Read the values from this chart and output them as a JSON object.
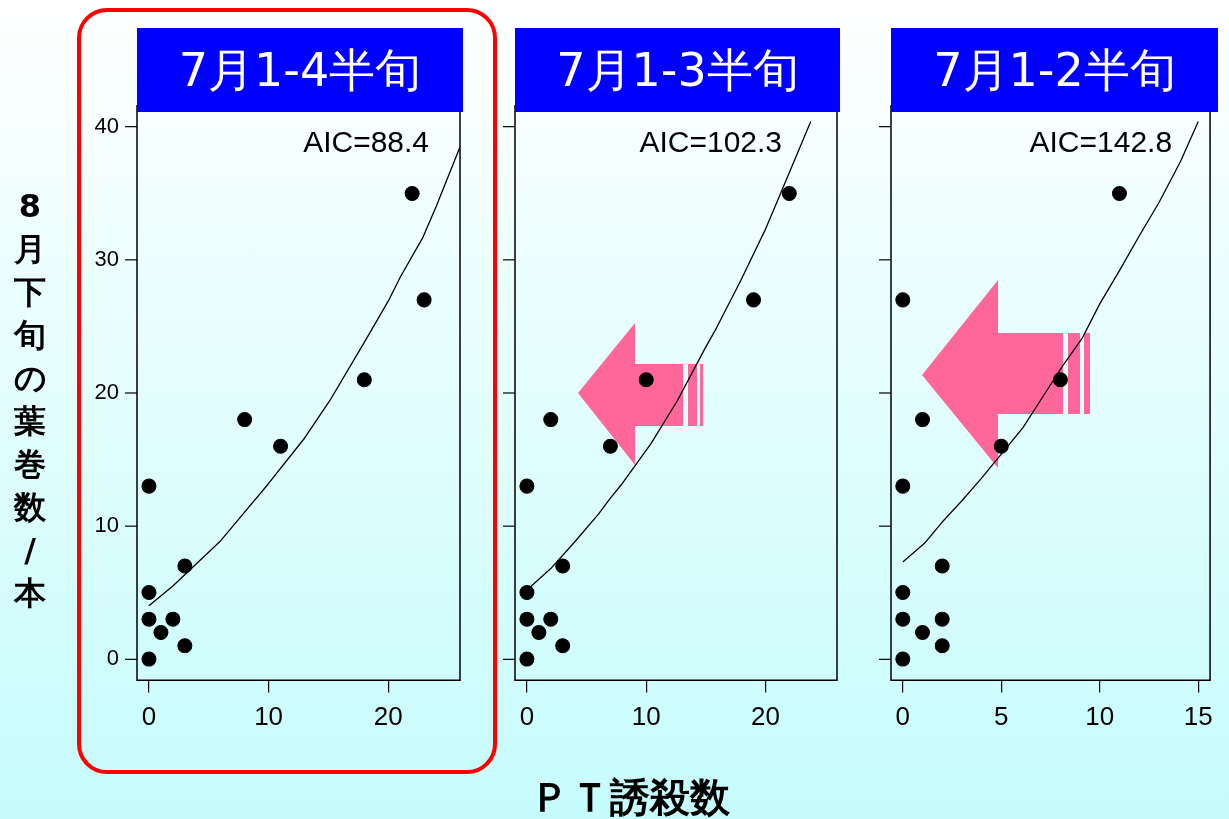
{
  "chart_data": [
    {
      "type": "scatter",
      "title": "7月1-4半旬",
      "ylabel": "8月下旬の葉巻数/本",
      "annotations": [
        "AIC=88.4"
      ],
      "marker": "circle",
      "grid": false,
      "xlim": [
        -1,
        26
      ],
      "xticks": [
        0,
        10,
        20
      ],
      "ylim": [
        -1.6,
        41.6
      ],
      "yticks": [
        0,
        10,
        20,
        30,
        40
      ],
      "series": [
        {
          "color": "#000000",
          "x": [
            0,
            0,
            1,
            2,
            3,
            0,
            3,
            0,
            8,
            11,
            18,
            22,
            23
          ],
          "values": [
            0,
            3,
            2,
            3,
            1,
            5,
            7,
            13,
            18,
            16,
            21,
            35,
            27
          ]
        },
        {
          "type": "line",
          "marker": "none",
          "color": "#000000",
          "x": [
            0,
            2,
            6,
            10,
            13,
            15.1,
            18,
            20,
            21,
            22.9,
            24,
            26
          ],
          "values": [
            4.0,
            5.5,
            8.9,
            13.2,
            16.6,
            19.4,
            23.8,
            26.9,
            28.7,
            31.7,
            34,
            38.5
          ]
        }
      ]
    },
    {
      "type": "scatter",
      "title": "7月1-3半旬",
      "xlabel": "ＰＴ誘殺数",
      "annotations": [
        "AIC=102.3"
      ],
      "marker": "circle",
      "grid": false,
      "tick_labels": "x",
      "xlim": [
        -1,
        26
      ],
      "xticks": [
        0,
        10,
        20
      ],
      "ylim": [
        -1.6,
        41.6
      ],
      "yticks": [
        0,
        10,
        20,
        30,
        40
      ],
      "series": [
        {
          "color": "#000000",
          "x": [
            0,
            0,
            1,
            2,
            3,
            0,
            3,
            0,
            2,
            7,
            10,
            19,
            22
          ],
          "values": [
            0,
            3,
            2,
            3,
            1,
            5,
            7,
            13,
            18,
            16,
            21,
            27,
            35
          ]
        },
        {
          "type": "line",
          "marker": "none",
          "color": "#000000",
          "x": [
            0,
            2,
            4,
            6,
            7,
            8,
            10.4,
            12.6,
            14.9,
            15.9,
            17.9,
            20,
            20.8,
            23.8
          ],
          "values": [
            5.2,
            6.8,
            8.8,
            10.9,
            12.1,
            13.2,
            16.2,
            19.4,
            23.3,
            24.9,
            28.4,
            32.3,
            34,
            40.4
          ]
        }
      ]
    },
    {
      "type": "scatter",
      "title": "7月1-2半旬",
      "annotations": [
        "AIC=142.8"
      ],
      "marker": "circle",
      "grid": false,
      "tick_labels": "x",
      "xlim": [
        -0.6,
        15.6
      ],
      "xticks": [
        0,
        5,
        10,
        15
      ],
      "ylim": [
        -1.6,
        41.6
      ],
      "yticks": [
        0,
        10,
        20,
        30,
        40
      ],
      "series": [
        {
          "color": "#000000",
          "x": [
            0,
            0,
            1,
            2,
            2,
            0,
            2,
            0,
            0,
            1,
            5,
            8,
            11
          ],
          "values": [
            0,
            3,
            2,
            3,
            1,
            5,
            7,
            13,
            27,
            18,
            16,
            21,
            35
          ]
        },
        {
          "type": "line",
          "marker": "none",
          "color": "#000000",
          "x": [
            0,
            1.1,
            2,
            3,
            4,
            5,
            6.1,
            7.1,
            8.1,
            9.1,
            10,
            11,
            12,
            13,
            14.1,
            15
          ],
          "values": [
            7.3,
            8.7,
            10.3,
            11.9,
            13.6,
            15.4,
            17.4,
            19.7,
            22,
            24.1,
            26.7,
            29.2,
            31.8,
            34.3,
            37.4,
            40.4
          ]
        }
      ]
    }
  ]
}
